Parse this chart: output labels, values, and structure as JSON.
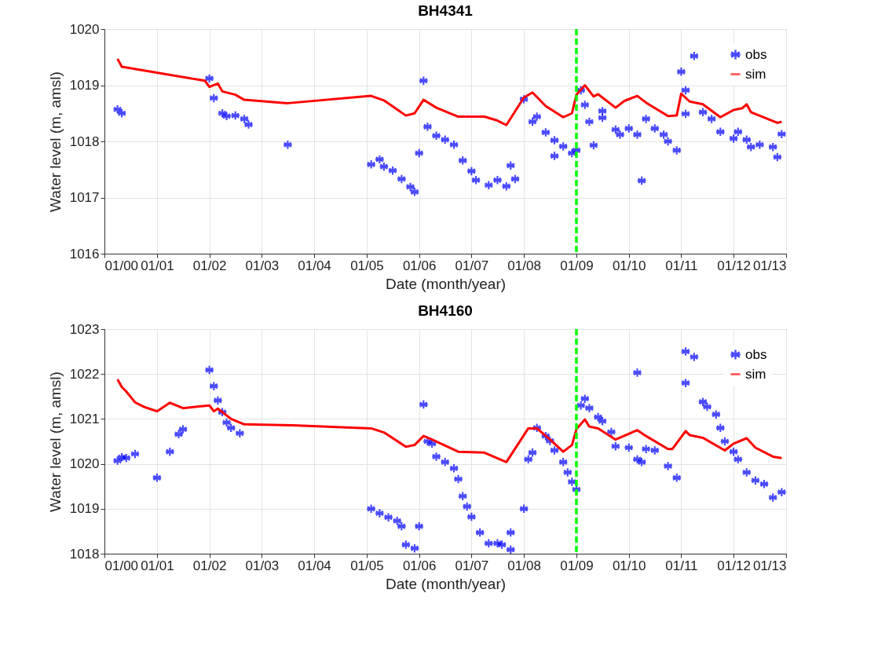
{
  "chart_data": [
    {
      "type": "line",
      "title": "BH4341",
      "xlabel": "Date (month/year)",
      "ylabel": "Water level (m, amsl)",
      "xlim": [
        "2000-01",
        "2013-01"
      ],
      "xticks": [
        {
          "value": "2000-01",
          "label": "01/00"
        },
        {
          "value": "2001-01",
          "label": "01/01"
        },
        {
          "value": "2002-01",
          "label": "01/02"
        },
        {
          "value": "2003-01",
          "label": "01/03"
        },
        {
          "value": "2004-01",
          "label": "01/04"
        },
        {
          "value": "2005-01",
          "label": "01/05"
        },
        {
          "value": "2006-01",
          "label": "01/06"
        },
        {
          "value": "2007-01",
          "label": "01/07"
        },
        {
          "value": "2008-01",
          "label": "01/08"
        },
        {
          "value": "2009-01",
          "label": "01/09"
        },
        {
          "value": "2010-01",
          "label": "01/10"
        },
        {
          "value": "2011-01",
          "label": "01/11"
        },
        {
          "value": "2012-01",
          "label": "01/12"
        },
        {
          "value": "2013-01",
          "label": "01/13"
        }
      ],
      "ylim": [
        1016,
        1020
      ],
      "yticks": [
        1016,
        1017,
        1018,
        1019,
        1020
      ],
      "grid": true,
      "legend": "top right",
      "ref_lines": [
        {
          "axis": "x",
          "value": "2009-01",
          "label": null,
          "color": "#00ff00",
          "line_style": "dashed"
        }
      ],
      "series": [
        {
          "name": "obs",
          "type": "scatter",
          "marker": "cross",
          "color": "#0000ff",
          "x": [
            "2000-04",
            "2000-05",
            "2002-01",
            "2002-02",
            "2002-04",
            "2002-05",
            "2002-07",
            "2002-09",
            "2002-10",
            "2003-07",
            "2005-02",
            "2005-04",
            "2005-05",
            "2005-07",
            "2005-09",
            "2005-11",
            "2005-12",
            "2006-01",
            "2006-02",
            "2006-03",
            "2006-05",
            "2006-07",
            "2006-09",
            "2006-11",
            "2007-01",
            "2007-02",
            "2007-05",
            "2007-07",
            "2007-09",
            "2007-10",
            "2007-11",
            "2008-01",
            "2008-03",
            "2008-04",
            "2008-06",
            "2008-08",
            "2008-08",
            "2008-10",
            "2008-12",
            "2009-01",
            "2009-02",
            "2009-03",
            "2009-04",
            "2009-05",
            "2009-07",
            "2009-07",
            "2009-10",
            "2009-11",
            "2010-01",
            "2010-03",
            "2010-04",
            "2010-05",
            "2010-07",
            "2010-09",
            "2010-10",
            "2010-12",
            "2011-01",
            "2011-02",
            "2011-02",
            "2011-04",
            "2011-06",
            "2011-08",
            "2011-10",
            "2012-01",
            "2012-02",
            "2012-04",
            "2012-05",
            "2012-07",
            "2012-10",
            "2012-11",
            "2012-12"
          ],
          "values": [
            1018.57,
            1018.5,
            1019.12,
            1018.77,
            1018.5,
            1018.45,
            1018.46,
            1018.4,
            1018.3,
            1017.94,
            1017.59,
            1017.68,
            1017.55,
            1017.48,
            1017.33,
            1017.19,
            1017.1,
            1017.79,
            1019.08,
            1018.26,
            1018.1,
            1018.03,
            1017.94,
            1017.66,
            1017.47,
            1017.31,
            1017.22,
            1017.31,
            1017.2,
            1017.57,
            1017.33,
            1018.75,
            1018.35,
            1018.44,
            1018.16,
            1017.74,
            1018.02,
            1017.91,
            1017.79,
            1017.84,
            1018.91,
            1018.65,
            1018.35,
            1017.93,
            1018.42,
            1018.54,
            1018.21,
            1018.12,
            1018.23,
            1018.12,
            1017.3,
            1018.4,
            1018.23,
            1018.12,
            1018.0,
            1017.84,
            1019.24,
            1018.91,
            1018.49,
            1019.52,
            1018.52,
            1018.4,
            1018.17,
            1018.05,
            1018.17,
            1018.03,
            1017.9,
            1017.94,
            1017.9,
            1017.72,
            1018.13
          ]
        },
        {
          "name": "sim",
          "type": "line",
          "color": "#ff0000",
          "x": [
            "2000-04",
            "2000-05",
            "2001-12",
            "2002-01",
            "2002-03",
            "2002-04",
            "2002-07",
            "2002-09",
            "2003-07",
            "2005-02",
            "2005-05",
            "2005-10",
            "2005-12",
            "2006-02",
            "2006-05",
            "2006-10",
            "2007-04",
            "2007-07",
            "2007-09",
            "2008-01",
            "2008-03",
            "2008-06",
            "2008-10",
            "2008-12",
            "2009-01",
            "2009-03",
            "2009-05",
            "2009-06",
            "2009-10",
            "2009-12",
            "2010-03",
            "2010-05",
            "2010-10",
            "2010-12",
            "2011-01",
            "2011-03",
            "2011-06",
            "2011-10",
            "2012-01",
            "2012-03",
            "2012-04",
            "2012-05",
            "2012-11",
            "2012-12"
          ],
          "values": [
            1019.47,
            1019.33,
            1019.08,
            1018.97,
            1019.03,
            1018.89,
            1018.83,
            1018.74,
            1018.68,
            1018.81,
            1018.73,
            1018.46,
            1018.5,
            1018.74,
            1018.6,
            1018.44,
            1018.44,
            1018.37,
            1018.29,
            1018.78,
            1018.87,
            1018.63,
            1018.43,
            1018.5,
            1018.83,
            1019.0,
            1018.8,
            1018.84,
            1018.6,
            1018.72,
            1018.81,
            1018.69,
            1018.45,
            1018.46,
            1018.85,
            1018.71,
            1018.66,
            1018.43,
            1018.56,
            1018.59,
            1018.66,
            1018.52,
            1018.33,
            1018.35
          ]
        }
      ]
    },
    {
      "type": "line",
      "title": "BH4160",
      "xlabel": "Date (month/year)",
      "ylabel": "Water level (m, amsl)",
      "xlim": [
        "2000-01",
        "2013-01"
      ],
      "xticks": [
        {
          "value": "2000-01",
          "label": "01/00"
        },
        {
          "value": "2001-01",
          "label": "01/01"
        },
        {
          "value": "2002-01",
          "label": "01/02"
        },
        {
          "value": "2003-01",
          "label": "01/03"
        },
        {
          "value": "2004-01",
          "label": "01/04"
        },
        {
          "value": "2005-01",
          "label": "01/05"
        },
        {
          "value": "2006-01",
          "label": "01/06"
        },
        {
          "value": "2007-01",
          "label": "01/07"
        },
        {
          "value": "2008-01",
          "label": "01/08"
        },
        {
          "value": "2009-01",
          "label": "01/09"
        },
        {
          "value": "2010-01",
          "label": "01/10"
        },
        {
          "value": "2011-01",
          "label": "01/11"
        },
        {
          "value": "2012-01",
          "label": "01/12"
        },
        {
          "value": "2013-01",
          "label": "01/13"
        }
      ],
      "ylim": [
        1018,
        1023
      ],
      "yticks": [
        1018,
        1019,
        1020,
        1021,
        1022,
        1023
      ],
      "grid": true,
      "legend": "top right",
      "ref_lines": [
        {
          "axis": "x",
          "value": "2009-01",
          "label": null,
          "color": "#00ff00",
          "line_style": "dashed"
        }
      ],
      "series": [
        {
          "name": "obs",
          "type": "scatter",
          "marker": "cross",
          "color": "#0000ff",
          "x": [
            "2000-04",
            "2000-05",
            "2000-06",
            "2000-08",
            "2001-01",
            "2001-04",
            "2001-06",
            "2001-07",
            "2002-01",
            "2002-02",
            "2002-03",
            "2002-04",
            "2002-05",
            "2002-06",
            "2002-08",
            "2005-02",
            "2005-04",
            "2005-06",
            "2005-08",
            "2005-09",
            "2005-10",
            "2005-12",
            "2006-01",
            "2006-02",
            "2006-03",
            "2006-04",
            "2006-05",
            "2006-07",
            "2006-09",
            "2006-10",
            "2006-11",
            "2006-12",
            "2007-01",
            "2007-03",
            "2007-05",
            "2007-07",
            "2007-08",
            "2007-10",
            "2007-10",
            "2008-01",
            "2008-02",
            "2008-03",
            "2008-04",
            "2008-06",
            "2008-07",
            "2008-08",
            "2008-10",
            "2008-11",
            "2008-12",
            "2009-01",
            "2009-02",
            "2009-03",
            "2009-04",
            "2009-06",
            "2009-07",
            "2009-09",
            "2009-10",
            "2010-01",
            "2010-03",
            "2010-03",
            "2010-04",
            "2010-05",
            "2010-07",
            "2010-10",
            "2010-12",
            "2011-02",
            "2011-02",
            "2011-04",
            "2011-06",
            "2011-07",
            "2011-09",
            "2011-10",
            "2011-11",
            "2012-01",
            "2012-02",
            "2012-04",
            "2012-06",
            "2012-08",
            "2012-10",
            "2012-12"
          ],
          "values": [
            1020.07,
            1020.15,
            1020.13,
            1020.22,
            1019.69,
            1020.27,
            1020.66,
            1020.77,
            1022.09,
            1021.73,
            1021.41,
            1021.15,
            1020.92,
            1020.8,
            1020.68,
            1019.0,
            1018.9,
            1018.81,
            1018.73,
            1018.61,
            1018.2,
            1018.12,
            1018.61,
            1021.32,
            1020.5,
            1020.45,
            1020.16,
            1020.04,
            1019.9,
            1019.66,
            1019.28,
            1019.05,
            1018.82,
            1018.47,
            1018.23,
            1018.23,
            1018.2,
            1018.09,
            1018.47,
            1019.0,
            1020.1,
            1020.25,
            1020.8,
            1020.62,
            1020.51,
            1020.3,
            1020.04,
            1019.81,
            1019.6,
            1019.43,
            1021.3,
            1021.45,
            1021.24,
            1021.04,
            1020.95,
            1020.71,
            1020.39,
            1020.36,
            1022.03,
            1020.1,
            1020.04,
            1020.33,
            1020.3,
            1019.95,
            1019.69,
            1022.5,
            1021.8,
            1022.38,
            1021.38,
            1021.27,
            1021.1,
            1020.8,
            1020.5,
            1020.27,
            1020.1,
            1019.81,
            1019.63,
            1019.55,
            1019.25,
            1019.37
          ]
        },
        {
          "name": "sim",
          "type": "line",
          "color": "#ff0000",
          "x": [
            "2000-04",
            "2000-05",
            "2000-06",
            "2000-08",
            "2000-10",
            "2001-01",
            "2001-04",
            "2001-07",
            "2002-01",
            "2002-02",
            "2002-03",
            "2002-06",
            "2002-09",
            "2003-08",
            "2005-02",
            "2005-05",
            "2005-10",
            "2005-12",
            "2006-02",
            "2006-04",
            "2006-10",
            "2007-04",
            "2007-09",
            "2008-02",
            "2008-04",
            "2008-07",
            "2008-10",
            "2008-12",
            "2009-01",
            "2009-03",
            "2009-04",
            "2009-06",
            "2009-10",
            "2010-01",
            "2010-03",
            "2010-05",
            "2010-10",
            "2010-11",
            "2011-02",
            "2011-03",
            "2011-06",
            "2011-11",
            "2012-01",
            "2012-04",
            "2012-06",
            "2012-10",
            "2012-12"
          ],
          "values": [
            1021.88,
            1021.71,
            1021.61,
            1021.37,
            1021.27,
            1021.17,
            1021.36,
            1021.24,
            1021.3,
            1021.17,
            1021.23,
            1021.0,
            1020.88,
            1020.86,
            1020.79,
            1020.7,
            1020.38,
            1020.42,
            1020.62,
            1020.54,
            1020.27,
            1020.25,
            1020.04,
            1020.79,
            1020.79,
            1020.54,
            1020.27,
            1020.42,
            1020.77,
            1020.99,
            1020.83,
            1020.79,
            1020.54,
            1020.67,
            1020.75,
            1020.62,
            1020.33,
            1020.33,
            1020.73,
            1020.64,
            1020.58,
            1020.3,
            1020.45,
            1020.57,
            1020.36,
            1020.16,
            1020.13
          ]
        }
      ]
    }
  ]
}
